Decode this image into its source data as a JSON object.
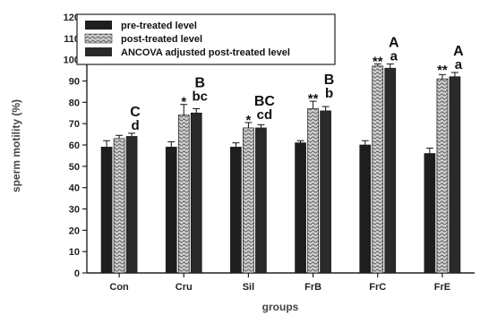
{
  "chart_data": {
    "type": "bar",
    "title": "",
    "xlabel": "groups",
    "ylabel": "sperm motility (%)",
    "ylim": [
      0,
      120
    ],
    "yticks": [
      0,
      10,
      20,
      30,
      40,
      50,
      60,
      70,
      80,
      90,
      100,
      110,
      120
    ],
    "grid": false,
    "legend_position": "top-left",
    "categories": [
      "Con",
      "Cru",
      "Sil",
      "FrB",
      "FrC",
      "FrE"
    ],
    "series": [
      {
        "name": "pre-treated level",
        "pattern": "solid",
        "color": "#1e1e1e",
        "values": [
          59,
          59,
          59,
          61,
          60,
          56
        ],
        "errors": [
          3,
          2.5,
          2,
          1,
          2,
          2.5
        ]
      },
      {
        "name": "post-treated level",
        "pattern": "wavy",
        "color": "#8a8a8a",
        "values": [
          63,
          74,
          68,
          77,
          97,
          91
        ],
        "errors": [
          1.5,
          5,
          2.5,
          3.5,
          1,
          2
        ]
      },
      {
        "name": "ANCOVA adjusted post-treated level",
        "pattern": "solid-dark",
        "color": "#2a2a2a",
        "values": [
          64,
          75,
          68,
          76,
          96,
          92
        ],
        "errors": [
          1.5,
          2,
          1.5,
          2,
          2,
          2
        ]
      }
    ],
    "annotations": [
      {
        "category": "Con",
        "stars": "",
        "letter_upper": "C",
        "letter_lower": "d"
      },
      {
        "category": "Cru",
        "stars": "*",
        "letter_upper": "B",
        "letter_lower": "bc"
      },
      {
        "category": "Sil",
        "stars": "*",
        "letter_upper": "BC",
        "letter_lower": "cd"
      },
      {
        "category": "FrB",
        "stars": "**",
        "letter_upper": "B",
        "letter_lower": "b"
      },
      {
        "category": "FrC",
        "stars": "**",
        "letter_upper": "A",
        "letter_lower": "a"
      },
      {
        "category": "FrE",
        "stars": "**",
        "letter_upper": "A",
        "letter_lower": "a"
      }
    ]
  }
}
